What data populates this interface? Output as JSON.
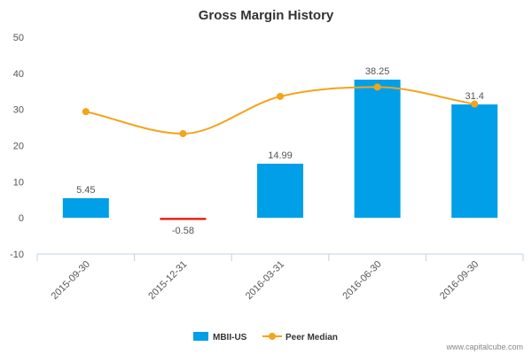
{
  "chart_data": {
    "type": "bar",
    "title": "Gross Margin History",
    "categories": [
      "2015-09-30",
      "2015-12-31",
      "2016-03-31",
      "2016-06-30",
      "2016-09-30"
    ],
    "series": [
      {
        "name": "MBII-US",
        "kind": "bar",
        "color": "#009fe8",
        "negative_color": "#e8190c",
        "values": [
          5.45,
          -0.58,
          14.99,
          38.25,
          31.4
        ],
        "labels": [
          "5.45",
          "-0.58",
          "14.99",
          "38.25",
          "31.4"
        ]
      },
      {
        "name": "Peer Median",
        "kind": "line",
        "color": "#f5a31b",
        "values": [
          29.4,
          23.3,
          33.6,
          36.2,
          31.5
        ]
      }
    ],
    "ylim": [
      -10,
      50
    ],
    "yticks": [
      -10,
      0,
      10,
      20,
      30,
      40,
      50
    ],
    "grid": false,
    "legend": "bottom-center",
    "xlabel": "",
    "ylabel": ""
  },
  "watermark": "www.capitalcube.com"
}
